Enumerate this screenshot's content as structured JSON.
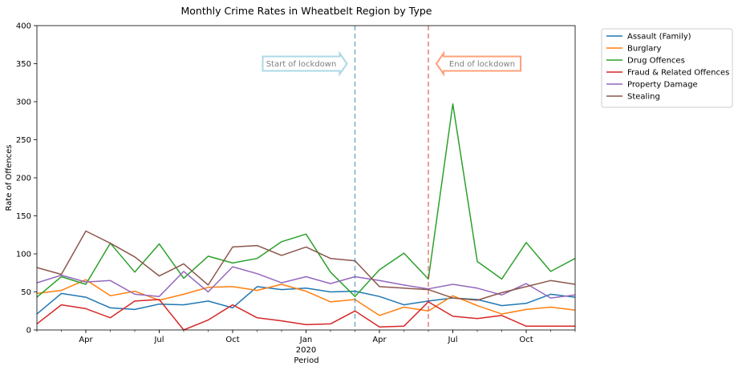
{
  "chart_data": {
    "type": "line",
    "title": "Monthly Crime Rates in Wheatbelt Region by Type",
    "xlabel": "Period",
    "ylabel": "Rate of Offences",
    "ylim": [
      0,
      400
    ],
    "yticks": [
      0,
      50,
      100,
      150,
      200,
      250,
      300,
      350,
      400
    ],
    "x_range": [
      "2019-02",
      "2020-12"
    ],
    "x_ticks": [
      {
        "month": "2019-04",
        "label": "Apr",
        "sublabel": ""
      },
      {
        "month": "2019-07",
        "label": "Jul",
        "sublabel": ""
      },
      {
        "month": "2019-10",
        "label": "Oct",
        "sublabel": ""
      },
      {
        "month": "2020-01",
        "label": "Jan",
        "sublabel": "2020"
      },
      {
        "month": "2020-04",
        "label": "Apr",
        "sublabel": ""
      },
      {
        "month": "2020-07",
        "label": "Jul",
        "sublabel": ""
      },
      {
        "month": "2020-10",
        "label": "Oct",
        "sublabel": ""
      }
    ],
    "months": [
      "2019-02",
      "2019-03",
      "2019-04",
      "2019-05",
      "2019-06",
      "2019-07",
      "2019-08",
      "2019-09",
      "2019-10",
      "2019-11",
      "2019-12",
      "2020-01",
      "2020-02",
      "2020-03",
      "2020-04",
      "2020-05",
      "2020-06",
      "2020-07",
      "2020-08",
      "2020-09",
      "2020-10",
      "2020-11",
      "2020-12"
    ],
    "series": [
      {
        "name": "Assault (Family)",
        "color": "#1f77b4",
        "values": [
          21,
          48,
          43,
          29,
          27,
          34,
          33,
          38,
          29,
          57,
          53,
          55,
          50,
          51,
          44,
          33,
          38,
          42,
          40,
          32,
          35,
          47,
          43
        ]
      },
      {
        "name": "Burglary",
        "color": "#ff7f0e",
        "values": [
          48,
          52,
          66,
          45,
          51,
          39,
          47,
          56,
          57,
          52,
          60,
          51,
          37,
          40,
          19,
          30,
          25,
          45,
          32,
          21,
          27,
          30,
          26
        ]
      },
      {
        "name": "Drug Offences",
        "color": "#2ca02c",
        "values": [
          43,
          70,
          60,
          114,
          76,
          113,
          68,
          97,
          88,
          94,
          116,
          126,
          76,
          44,
          79,
          101,
          67,
          297,
          90,
          67,
          115,
          77,
          94
        ]
      },
      {
        "name": "Fraud & Related Offences",
        "color": "#d62728",
        "values": [
          8,
          33,
          28,
          16,
          38,
          40,
          0,
          13,
          33,
          16,
          12,
          7,
          8,
          25,
          4,
          5,
          37,
          18,
          15,
          19,
          5,
          5,
          5
        ]
      },
      {
        "name": "Property Damage",
        "color": "#9467bd",
        "values": [
          62,
          72,
          63,
          65,
          47,
          44,
          77,
          50,
          83,
          74,
          62,
          70,
          61,
          70,
          65,
          59,
          54,
          60,
          55,
          46,
          61,
          42,
          46
        ]
      },
      {
        "name": "Stealing",
        "color": "#8c564b",
        "values": [
          82,
          73,
          130,
          114,
          96,
          71,
          87,
          59,
          109,
          111,
          98,
          109,
          94,
          91,
          57,
          55,
          53,
          42,
          39,
          49,
          57,
          65,
          60
        ]
      }
    ],
    "vlines": [
      {
        "month": "2020-03",
        "color": "#1f77b4"
      },
      {
        "month": "2020-06",
        "color": "#d62728"
      }
    ],
    "annotations": [
      {
        "text": "Start of lockdown",
        "arrow": "right",
        "y": 350,
        "stroke": "#add8e6",
        "text_color": "#808080"
      },
      {
        "text": "End of lockdown",
        "arrow": "left",
        "y": 350,
        "stroke": "#ffa07a",
        "text_color": "#808080"
      }
    ],
    "legend_position": "outside-top-right",
    "grid": false
  }
}
